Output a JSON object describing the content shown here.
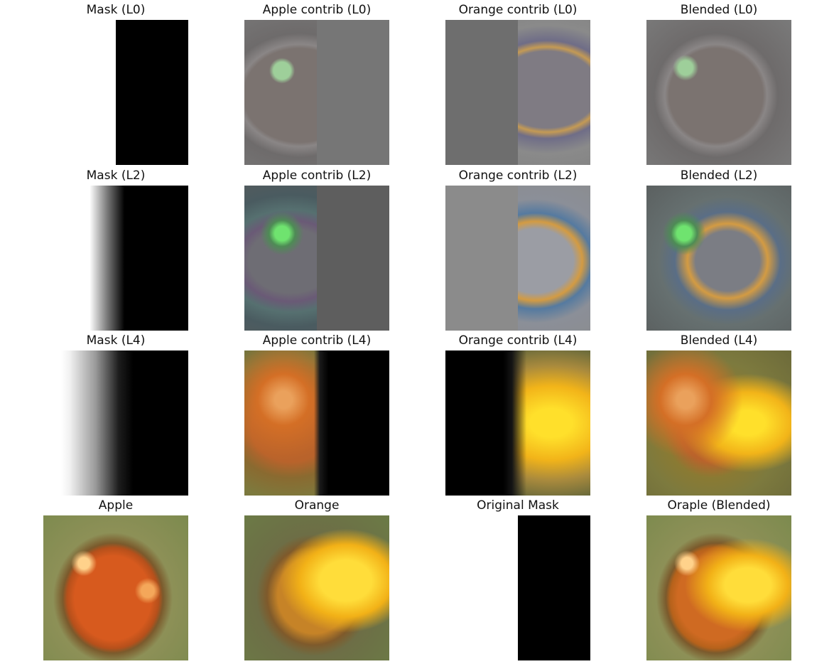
{
  "figure": {
    "rows": [
      {
        "titles": [
          "Mask (L0)",
          "Apple contrib (L0)",
          "Orange contrib (L0)",
          "Blended (L0)"
        ]
      },
      {
        "titles": [
          "Mask (L2)",
          "Apple contrib (L2)",
          "Orange contrib (L2)",
          "Blended (L2)"
        ]
      },
      {
        "titles": [
          "Mask (L4)",
          "Apple contrib (L4)",
          "Orange contrib (L4)",
          "Blended (L4)"
        ]
      },
      {
        "titles": [
          "Apple",
          "Orange",
          "Original Mask",
          "Oraple (Blended)"
        ]
      }
    ]
  },
  "colors": {
    "background": "#ffffff",
    "text": "#111111"
  },
  "icons": {
    "image-tiles": "image-thumbnail-icon"
  }
}
